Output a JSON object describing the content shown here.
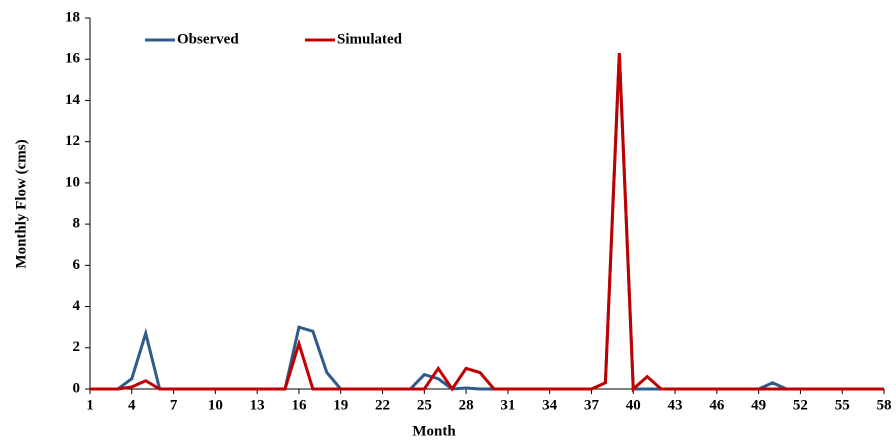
{
  "chart_data": {
    "type": "line",
    "x_label": "Month",
    "y_label": "Monthly Flow (cms)",
    "x": [
      1,
      2,
      3,
      4,
      5,
      6,
      7,
      8,
      9,
      10,
      11,
      12,
      13,
      14,
      15,
      16,
      17,
      18,
      19,
      20,
      21,
      22,
      23,
      24,
      25,
      26,
      27,
      28,
      29,
      30,
      31,
      32,
      33,
      34,
      35,
      36,
      37,
      38,
      39,
      40,
      41,
      42,
      43,
      44,
      45,
      46,
      47,
      48,
      49,
      50,
      51,
      52,
      53,
      54,
      55,
      56,
      57,
      58
    ],
    "series": [
      {
        "name": "Observed",
        "color": "#2f5b8a",
        "values": [
          0,
          0,
          0,
          0.5,
          2.7,
          0,
          0,
          0,
          0,
          0,
          0,
          0,
          0,
          0,
          0,
          3.0,
          2.8,
          0.8,
          0,
          0,
          0,
          0,
          0,
          0,
          0.7,
          0.5,
          0,
          0.05,
          0,
          0,
          0,
          0,
          0,
          0,
          0,
          0,
          0,
          0.3,
          16.3,
          0,
          0,
          0,
          0,
          0,
          0,
          0,
          0,
          0,
          0,
          0.3,
          0,
          0,
          0,
          0,
          0,
          0,
          0,
          0
        ]
      },
      {
        "name": "Simulated",
        "color": "#c00000",
        "values": [
          0,
          0,
          0,
          0.1,
          0.4,
          0,
          0,
          0,
          0,
          0,
          0,
          0,
          0,
          0,
          0,
          2.2,
          0,
          0,
          0,
          0,
          0,
          0,
          0,
          0,
          0,
          1.0,
          0,
          1.0,
          0.8,
          0,
          0,
          0,
          0,
          0,
          0,
          0,
          0,
          0.3,
          16.3,
          0,
          0.6,
          0,
          0,
          0,
          0,
          0,
          0,
          0,
          0,
          0,
          0,
          0,
          0,
          0,
          0,
          0,
          0,
          0
        ]
      }
    ],
    "xlim": [
      1,
      58
    ],
    "xticks": [
      1,
      4,
      7,
      10,
      13,
      16,
      19,
      22,
      25,
      28,
      31,
      34,
      37,
      40,
      43,
      46,
      49,
      52,
      55,
      58
    ],
    "ylim": [
      0,
      18
    ],
    "yticks": [
      0,
      2,
      4,
      6,
      8,
      10,
      12,
      14,
      16,
      18
    ],
    "grid": false,
    "legend": "top-left"
  }
}
